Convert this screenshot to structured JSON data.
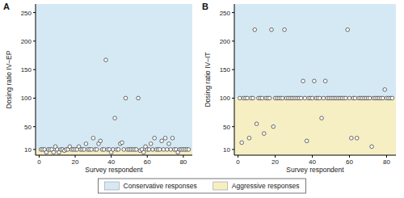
{
  "chart_data": [
    {
      "type": "scatter",
      "panel": "A",
      "y_label": "Dosing ratio IV–EP",
      "x_label": "Survey respondent",
      "x": [
        1,
        2,
        3,
        4,
        5,
        6,
        7,
        8,
        9,
        10,
        11,
        12,
        13,
        14,
        15,
        16,
        17,
        18,
        19,
        20,
        21,
        22,
        23,
        24,
        25,
        26,
        27,
        28,
        29,
        30,
        31,
        32,
        33,
        34,
        35,
        36,
        37,
        38,
        39,
        40,
        41,
        42,
        43,
        44,
        45,
        46,
        47,
        48,
        49,
        50,
        51,
        52,
        53,
        54,
        55,
        56,
        57,
        58,
        59,
        60,
        61,
        62,
        63,
        64,
        65,
        66,
        67,
        68,
        69,
        70,
        71,
        72,
        73,
        74,
        75,
        76,
        77,
        78,
        79,
        80,
        81,
        82,
        83
      ],
      "values": [
        10,
        10,
        10,
        5,
        10,
        10,
        10,
        5,
        15,
        10,
        5,
        10,
        10,
        8,
        10,
        10,
        15,
        10,
        10,
        10,
        10,
        15,
        10,
        10,
        10,
        20,
        10,
        10,
        10,
        30,
        10,
        10,
        20,
        25,
        10,
        10,
        167,
        10,
        10,
        5,
        10,
        65,
        10,
        10,
        20,
        22,
        10,
        100,
        10,
        10,
        10,
        10,
        10,
        10,
        100,
        8,
        10,
        5,
        15,
        10,
        10,
        20,
        10,
        30,
        10,
        10,
        10,
        25,
        10,
        30,
        10,
        20,
        10,
        30,
        10,
        10,
        5,
        10,
        10,
        10,
        10,
        10,
        10
      ],
      "xlim": [
        -2,
        85
      ],
      "xticks": [
        0,
        20,
        40,
        60,
        80
      ],
      "ylim": [
        0,
        265
      ],
      "yticks": [
        10,
        50,
        100,
        150,
        200,
        250
      ],
      "threshold": 10,
      "marker": "circle",
      "color": "#444444"
    },
    {
      "type": "scatter",
      "panel": "B",
      "y_label": "Dosing ratio IV–IT",
      "x_label": "Survey respondent",
      "x": [
        1,
        2,
        3,
        4,
        5,
        6,
        7,
        8,
        9,
        10,
        11,
        12,
        13,
        14,
        15,
        16,
        17,
        18,
        19,
        20,
        21,
        22,
        23,
        24,
        25,
        26,
        27,
        28,
        29,
        30,
        31,
        32,
        33,
        34,
        35,
        36,
        37,
        38,
        39,
        40,
        41,
        42,
        43,
        44,
        45,
        46,
        47,
        48,
        49,
        50,
        51,
        52,
        53,
        54,
        55,
        56,
        57,
        58,
        59,
        60,
        61,
        62,
        63,
        64,
        65,
        66,
        67,
        68,
        69,
        70,
        71,
        72,
        73,
        74,
        75,
        76,
        77,
        78,
        79,
        80,
        81,
        82,
        83
      ],
      "values": [
        100,
        22,
        100,
        100,
        100,
        30,
        100,
        100,
        220,
        55,
        100,
        100,
        100,
        38,
        100,
        100,
        100,
        220,
        50,
        100,
        100,
        100,
        100,
        100,
        220,
        100,
        100,
        100,
        100,
        100,
        100,
        100,
        100,
        100,
        130,
        100,
        25,
        100,
        100,
        100,
        130,
        100,
        100,
        100,
        65,
        100,
        130,
        100,
        100,
        100,
        100,
        100,
        100,
        100,
        100,
        100,
        100,
        100,
        220,
        100,
        30,
        100,
        100,
        30,
        100,
        100,
        100,
        100,
        100,
        100,
        100,
        15,
        100,
        100,
        100,
        100,
        100,
        100,
        115,
        100,
        100,
        100,
        100
      ],
      "xlim": [
        -2,
        85
      ],
      "xticks": [
        0,
        20,
        40,
        60,
        80
      ],
      "ylim": [
        0,
        265
      ],
      "yticks": [
        10,
        50,
        100,
        150,
        200,
        250
      ],
      "threshold": 100,
      "marker": "circle",
      "color": "#444444"
    }
  ],
  "regions": [
    {
      "name": "Conservative responses",
      "color": "#d5e9f5"
    },
    {
      "name": "Aggressive responses",
      "color": "#f6efc4"
    }
  ]
}
